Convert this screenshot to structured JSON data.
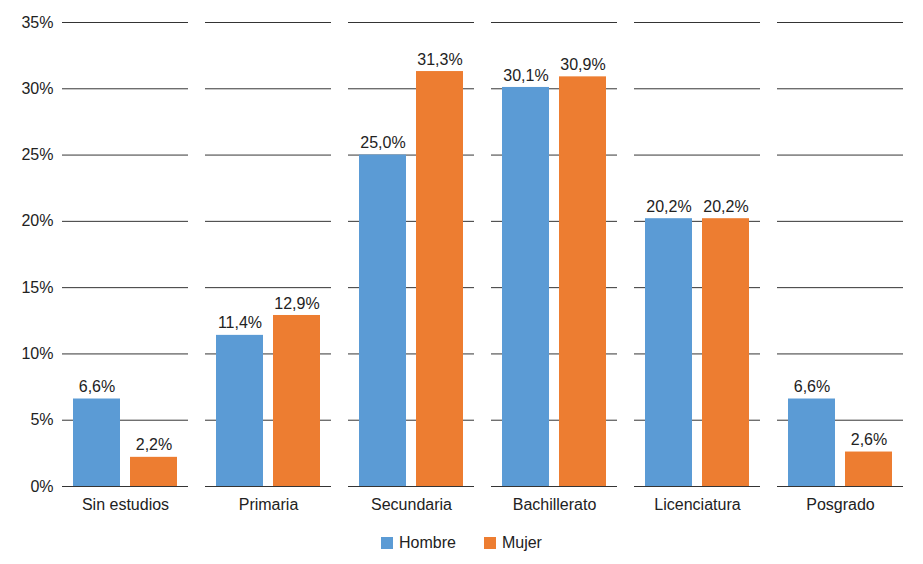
{
  "chart_data": {
    "type": "bar",
    "categories": [
      "Sin estudios",
      "Primaria",
      "Secundaria",
      "Bachillerato",
      "Licenciatura",
      "Posgrado"
    ],
    "series": [
      {
        "name": "Hombre",
        "color": "#5b9bd5",
        "values": [
          6.6,
          11.4,
          25.0,
          30.1,
          20.2,
          6.6
        ],
        "value_labels": [
          "6,6%",
          "11,4%",
          "25,0%",
          "30,1%",
          "20,2%",
          "6,6%"
        ]
      },
      {
        "name": "Mujer",
        "color": "#ed7d31",
        "values": [
          2.2,
          12.9,
          31.3,
          30.9,
          20.2,
          2.6
        ],
        "value_labels": [
          "2,2%",
          "12,9%",
          "31,3%",
          "30,9%",
          "20,2%",
          "2,6%"
        ]
      }
    ],
    "ylim": [
      0,
      35
    ],
    "yticks": [
      {
        "value": 0,
        "label": "0%"
      },
      {
        "value": 5,
        "label": "5%"
      },
      {
        "value": 10,
        "label": "10%"
      },
      {
        "value": 15,
        "label": "15%"
      },
      {
        "value": 20,
        "label": "20%"
      },
      {
        "value": 25,
        "label": "25%"
      },
      {
        "value": 30,
        "label": "30%"
      },
      {
        "value": 35,
        "label": "35%"
      }
    ],
    "grid": true,
    "legend": "bottom",
    "data_labels": true
  }
}
